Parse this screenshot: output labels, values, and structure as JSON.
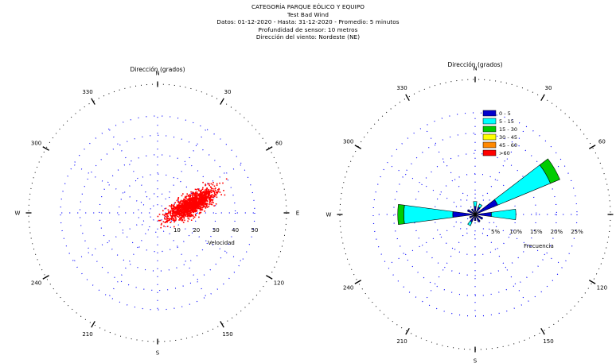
{
  "header": {
    "lines": [
      "CATEGORÍA PARQUE EÓLICO Y EQUIPO",
      "Test Bad Wind",
      "Datos: 01-12-2020 - Hasta: 31-12-2020 - Promedio: 5 minutos",
      "Profundidad de sensor: 10 metros",
      "Dirección del viento: Nordeste (NE)"
    ]
  },
  "chart_data": [
    {
      "type": "scatter",
      "title": "Dirección (grados)",
      "radial_axis_label": "Velocidad",
      "radial_ticks": [
        10,
        20,
        30,
        40,
        50
      ],
      "rlim": [
        0,
        50
      ],
      "compass_ticks": [
        "N",
        "30",
        "60",
        "E",
        "120",
        "150",
        "S",
        "210",
        "240",
        "W",
        "300",
        "330"
      ],
      "grid": true,
      "color": "#ff0000",
      "cluster": {
        "count": 1500,
        "center_dir_deg": 75,
        "center_speed": 18,
        "dir_spread_deg": 15,
        "speed_spread": 8
      }
    },
    {
      "type": "windrose",
      "title": "Dirección (grados)",
      "radial_axis_label": "Frecuencia",
      "radial_ticks": [
        "5%",
        "10%",
        "15%",
        "20%",
        "25%"
      ],
      "rlim": [
        0,
        25
      ],
      "compass_ticks": [
        "N",
        "30",
        "60",
        "E",
        "120",
        "150",
        "S",
        "210",
        "240",
        "W",
        "300",
        "330"
      ],
      "grid": true,
      "legend_position": "top-right",
      "bins": [
        {
          "label": "0 - 5",
          "color": "#0000cc"
        },
        {
          "label": "5 - 15",
          "color": "#00ffff"
        },
        {
          "label": "15 - 30",
          "color": "#00cc00"
        },
        {
          "label": "30 - 45",
          "color": "#ffff00"
        },
        {
          "label": "45 - 60",
          "color": "#ff8800"
        },
        {
          "label": ">60",
          "color": "#ff0000"
        }
      ],
      "sectors": [
        {
          "dir": 0,
          "values": [
            2.0,
            1.2,
            0,
            0,
            0,
            0
          ]
        },
        {
          "dir": 30,
          "values": [
            2.0,
            0.8,
            0,
            0,
            0,
            0
          ]
        },
        {
          "dir": 60,
          "values": [
            6.0,
            14.0,
            2.5,
            0,
            0,
            0
          ]
        },
        {
          "dir": 90,
          "values": [
            4.0,
            6.0,
            0,
            0,
            0,
            0
          ]
        },
        {
          "dir": 120,
          "values": [
            2.0,
            0,
            0,
            0,
            0,
            0
          ]
        },
        {
          "dir": 150,
          "values": [
            2.0,
            0,
            0,
            0,
            0,
            0
          ]
        },
        {
          "dir": 180,
          "values": [
            1.5,
            0,
            0,
            0,
            0,
            0
          ]
        },
        {
          "dir": 210,
          "values": [
            2.0,
            1.0,
            0,
            0,
            0,
            0
          ]
        },
        {
          "dir": 240,
          "values": [
            1.5,
            0,
            0,
            0,
            0,
            0
          ]
        },
        {
          "dir": 270,
          "values": [
            5.5,
            12.0,
            1.5,
            0,
            0,
            0
          ]
        },
        {
          "dir": 300,
          "values": [
            2.0,
            0,
            0,
            0,
            0,
            0
          ]
        },
        {
          "dir": 330,
          "values": [
            1.5,
            0,
            0,
            0,
            0,
            0
          ]
        }
      ]
    }
  ]
}
